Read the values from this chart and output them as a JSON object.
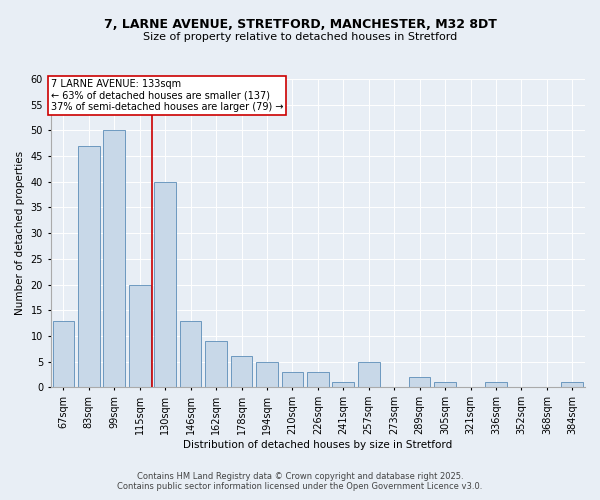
{
  "title_line1": "7, LARNE AVENUE, STRETFORD, MANCHESTER, M32 8DT",
  "title_line2": "Size of property relative to detached houses in Stretford",
  "xlabel": "Distribution of detached houses by size in Stretford",
  "ylabel": "Number of detached properties",
  "categories": [
    "67sqm",
    "83sqm",
    "99sqm",
    "115sqm",
    "130sqm",
    "146sqm",
    "162sqm",
    "178sqm",
    "194sqm",
    "210sqm",
    "226sqm",
    "241sqm",
    "257sqm",
    "273sqm",
    "289sqm",
    "305sqm",
    "321sqm",
    "336sqm",
    "352sqm",
    "368sqm",
    "384sqm"
  ],
  "values": [
    13,
    47,
    50,
    20,
    40,
    13,
    9,
    6,
    5,
    3,
    3,
    1,
    5,
    0,
    2,
    1,
    0,
    1,
    0,
    0,
    1
  ],
  "bar_color": "#c8d8e8",
  "bar_edge_color": "#5b8db8",
  "red_line_x": 3.5,
  "annotation_title": "7 LARNE AVENUE: 133sqm",
  "annotation_line2": "← 63% of detached houses are smaller (137)",
  "annotation_line3": "37% of semi-detached houses are larger (79) →",
  "annotation_box_color": "#ffffff",
  "annotation_box_edge": "#cc0000",
  "red_line_color": "#cc0000",
  "ylim": [
    0,
    60
  ],
  "yticks": [
    0,
    5,
    10,
    15,
    20,
    25,
    30,
    35,
    40,
    45,
    50,
    55,
    60
  ],
  "footnote1": "Contains HM Land Registry data © Crown copyright and database right 2025.",
  "footnote2": "Contains public sector information licensed under the Open Government Licence v3.0.",
  "bg_color": "#e8eef5",
  "plot_bg_color": "#e8eef5",
  "title_fontsize": 9,
  "subtitle_fontsize": 8,
  "axis_label_fontsize": 7.5,
  "tick_fontsize": 7,
  "annotation_fontsize": 7,
  "footnote_fontsize": 6
}
